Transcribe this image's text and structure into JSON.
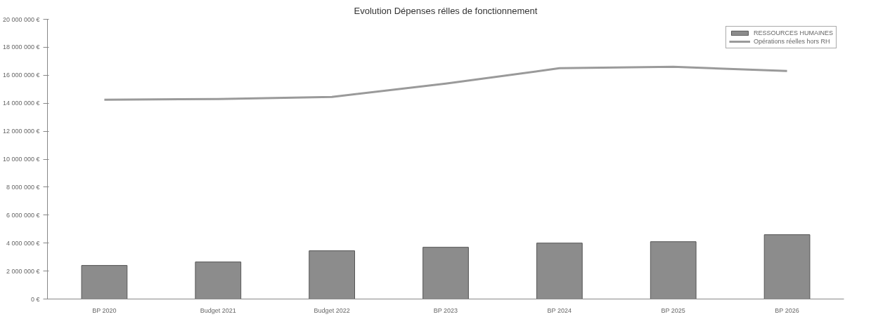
{
  "chart_data": {
    "type": "bar",
    "title": "Evolution Dépenses rélles de fonctionnement",
    "categories": [
      "BP 2020",
      "Budget 2021",
      "Budget 2022",
      "BP 2023",
      "BP 2024",
      "BP 2025",
      "BP 2026"
    ],
    "series": [
      {
        "name": "RESSOURCES HUMAINES",
        "color": "#8c8c8c",
        "values": [
          2400000,
          2650000,
          3450000,
          3700000,
          4000000,
          4100000,
          4600000
        ]
      },
      {
        "name": "Opérations réelles hors RH",
        "type": "line",
        "color": "#9a9a9a",
        "values": [
          14250000,
          14300000,
          14450000,
          15400000,
          16500000,
          16600000,
          16300000
        ]
      }
    ],
    "ylim": [
      0,
      20000000
    ],
    "yticks": [
      {
        "value": 0,
        "label": "0 €"
      },
      {
        "value": 2000000,
        "label": "2 000 000 €"
      },
      {
        "value": 4000000,
        "label": "4 000 000 €"
      },
      {
        "value": 6000000,
        "label": "6 000 000 €"
      },
      {
        "value": 8000000,
        "label": "8 000 000 €"
      },
      {
        "value": 10000000,
        "label": "10 000 000 €"
      },
      {
        "value": 12000000,
        "label": "12 000 000 €"
      },
      {
        "value": 14000000,
        "label": "14 000 000 €"
      },
      {
        "value": 16000000,
        "label": "16 000 000 €"
      },
      {
        "value": 18000000,
        "label": "18 000 000 €"
      },
      {
        "value": 20000000,
        "label": "20 000 000 €"
      }
    ],
    "grid": false,
    "legend": "top right",
    "marker": "none",
    "line_style": "solid"
  }
}
